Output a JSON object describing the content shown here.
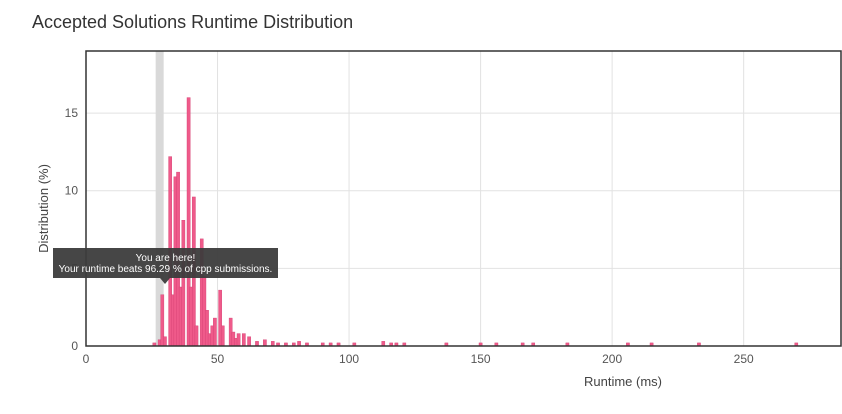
{
  "chart_data": {
    "type": "bar",
    "title": "Accepted Solutions Runtime Distribution",
    "xlabel": "Runtime (ms)",
    "ylabel": "Distribution (%)",
    "xlim": [
      0,
      287
    ],
    "ylim": [
      0,
      19
    ],
    "xticks": [
      0,
      50,
      100,
      150,
      200,
      250
    ],
    "yticks": [
      0,
      5,
      10,
      15
    ],
    "grid": true,
    "bar_color": "#ef5a8a",
    "highlight_color": "#d9d9d9",
    "highlight_x": 28,
    "bars": [
      {
        "x": 26,
        "y": 0.2
      },
      {
        "x": 28,
        "y": 0.4
      },
      {
        "x": 29,
        "y": 3.3
      },
      {
        "x": 30,
        "y": 0.6
      },
      {
        "x": 32,
        "y": 12.2
      },
      {
        "x": 33,
        "y": 3.3
      },
      {
        "x": 34,
        "y": 10.9
      },
      {
        "x": 35,
        "y": 11.2
      },
      {
        "x": 36,
        "y": 3.8
      },
      {
        "x": 37,
        "y": 8.1
      },
      {
        "x": 39,
        "y": 16.0
      },
      {
        "x": 40,
        "y": 3.8
      },
      {
        "x": 41,
        "y": 9.6
      },
      {
        "x": 42,
        "y": 1.3
      },
      {
        "x": 44,
        "y": 6.9
      },
      {
        "x": 45,
        "y": 4.5
      },
      {
        "x": 46,
        "y": 2.3
      },
      {
        "x": 47,
        "y": 0.8
      },
      {
        "x": 48,
        "y": 1.3
      },
      {
        "x": 49,
        "y": 1.8
      },
      {
        "x": 51,
        "y": 3.6
      },
      {
        "x": 52,
        "y": 1.3
      },
      {
        "x": 55,
        "y": 1.8
      },
      {
        "x": 56,
        "y": 0.9
      },
      {
        "x": 57,
        "y": 0.5
      },
      {
        "x": 58,
        "y": 0.8
      },
      {
        "x": 60,
        "y": 0.8
      },
      {
        "x": 62,
        "y": 0.6
      },
      {
        "x": 65,
        "y": 0.3
      },
      {
        "x": 68,
        "y": 0.4
      },
      {
        "x": 71,
        "y": 0.3
      },
      {
        "x": 73,
        "y": 0.2
      },
      {
        "x": 76,
        "y": 0.2
      },
      {
        "x": 79,
        "y": 0.2
      },
      {
        "x": 81,
        "y": 0.3
      },
      {
        "x": 84,
        "y": 0.2
      },
      {
        "x": 90,
        "y": 0.2
      },
      {
        "x": 93,
        "y": 0.2
      },
      {
        "x": 96,
        "y": 0.2
      },
      {
        "x": 102,
        "y": 0.2
      },
      {
        "x": 113,
        "y": 0.3
      },
      {
        "x": 116,
        "y": 0.2
      },
      {
        "x": 118,
        "y": 0.2
      },
      {
        "x": 121,
        "y": 0.2
      },
      {
        "x": 137,
        "y": 0.2
      },
      {
        "x": 150,
        "y": 0.2
      },
      {
        "x": 156,
        "y": 0.2
      },
      {
        "x": 166,
        "y": 0.2
      },
      {
        "x": 170,
        "y": 0.2
      },
      {
        "x": 183,
        "y": 0.2
      },
      {
        "x": 206,
        "y": 0.2
      },
      {
        "x": 215,
        "y": 0.2
      },
      {
        "x": 233,
        "y": 0.2
      },
      {
        "x": 270,
        "y": 0.2
      }
    ],
    "annotation": {
      "line1": "You are here!",
      "line2": "Your runtime beats 96.29 % of cpp submissions."
    }
  }
}
